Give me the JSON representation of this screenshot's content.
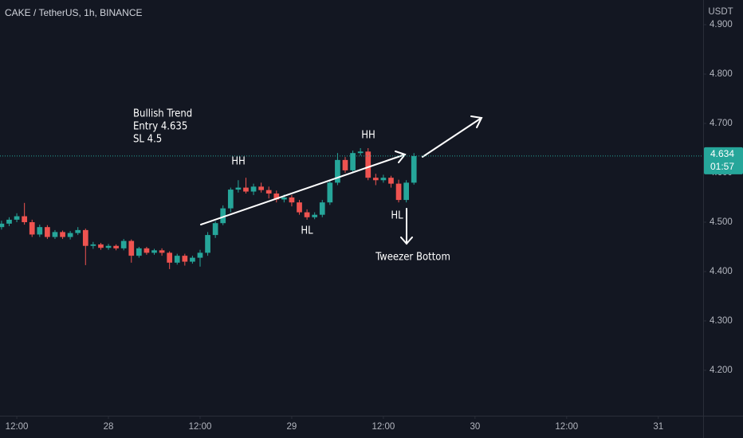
{
  "header": {
    "symbol": "CAKE / TetherUS, 1h, BINANCE",
    "currency": "USDT"
  },
  "chart_data": {
    "type": "candlestick",
    "up_color": "#26a69a",
    "down_color": "#ef5350",
    "x": [
      0,
      1,
      2,
      3,
      4,
      5,
      6,
      7,
      8,
      9,
      10,
      11,
      12,
      13,
      14,
      15,
      16,
      17,
      18,
      19,
      20,
      21,
      22,
      23,
      24,
      25,
      26,
      27,
      28,
      29,
      30,
      31,
      32,
      33,
      34,
      35,
      36,
      37,
      38,
      39,
      40,
      41,
      42,
      43,
      44,
      45,
      46,
      47,
      48,
      49,
      50,
      51,
      52,
      53,
      54
    ],
    "open": [
      4.49,
      4.497,
      4.505,
      4.512,
      4.5,
      4.475,
      4.49,
      4.47,
      4.48,
      4.47,
      4.478,
      4.484,
      4.452,
      4.455,
      4.448,
      4.452,
      4.447,
      4.462,
      4.432,
      4.447,
      4.438,
      4.443,
      4.438,
      4.418,
      4.432,
      4.42,
      4.428,
      4.438,
      4.474,
      4.498,
      4.528,
      4.566,
      4.57,
      4.562,
      4.572,
      4.565,
      4.558,
      4.546,
      4.55,
      4.54,
      4.52,
      4.51,
      4.515,
      4.54,
      4.58,
      4.626,
      4.605,
      4.64,
      4.643,
      4.59,
      4.585,
      4.59,
      4.578,
      4.545,
      4.58
    ],
    "high": [
      4.503,
      4.51,
      4.518,
      4.539,
      4.505,
      4.495,
      4.494,
      4.484,
      4.483,
      4.482,
      4.49,
      4.487,
      4.46,
      4.458,
      4.456,
      4.455,
      4.466,
      4.465,
      4.45,
      4.45,
      4.446,
      4.447,
      4.441,
      4.436,
      4.436,
      4.432,
      4.444,
      4.48,
      4.502,
      4.534,
      4.57,
      4.585,
      4.59,
      4.578,
      4.58,
      4.572,
      4.564,
      4.556,
      4.555,
      4.545,
      4.526,
      4.52,
      4.545,
      4.585,
      4.64,
      4.632,
      4.645,
      4.65,
      4.65,
      4.598,
      4.596,
      4.594,
      4.586,
      4.585,
      4.64
    ],
    "low": [
      4.485,
      4.492,
      4.5,
      4.495,
      4.47,
      4.47,
      4.466,
      4.466,
      4.466,
      4.465,
      4.474,
      4.413,
      4.446,
      4.444,
      4.444,
      4.443,
      4.443,
      4.418,
      4.428,
      4.434,
      4.434,
      4.432,
      4.405,
      4.414,
      4.412,
      4.416,
      4.41,
      4.432,
      4.468,
      4.494,
      4.52,
      4.56,
      4.558,
      4.555,
      4.56,
      4.548,
      4.54,
      4.54,
      4.532,
      4.515,
      4.505,
      4.506,
      4.51,
      4.535,
      4.575,
      4.6,
      4.6,
      4.635,
      4.585,
      4.575,
      4.58,
      4.57,
      4.54,
      4.54,
      4.576
    ],
    "close": [
      4.497,
      4.505,
      4.512,
      4.5,
      4.475,
      4.49,
      4.47,
      4.48,
      4.47,
      4.478,
      4.484,
      4.452,
      4.455,
      4.448,
      4.452,
      4.447,
      4.462,
      4.432,
      4.447,
      4.438,
      4.443,
      4.438,
      4.418,
      4.432,
      4.42,
      4.428,
      4.438,
      4.474,
      4.498,
      4.528,
      4.566,
      4.57,
      4.562,
      4.572,
      4.565,
      4.558,
      4.546,
      4.55,
      4.54,
      4.52,
      4.51,
      4.515,
      4.54,
      4.58,
      4.626,
      4.605,
      4.64,
      4.643,
      4.59,
      4.585,
      4.59,
      4.578,
      4.545,
      4.58,
      4.634
    ],
    "xlim": [
      -0.2,
      91.87
    ],
    "xticks": [
      {
        "value": 2,
        "label": "12:00"
      },
      {
        "value": 14,
        "label": "28"
      },
      {
        "value": 26,
        "label": "12:00"
      },
      {
        "value": 38,
        "label": "29"
      },
      {
        "value": 50,
        "label": "12:00"
      },
      {
        "value": 62,
        "label": "30"
      },
      {
        "value": 74,
        "label": "12:00"
      },
      {
        "value": 86,
        "label": "31"
      }
    ],
    "ylim": [
      4.108,
      4.95
    ],
    "yticks": [
      {
        "value": 4.2,
        "label": "4.200"
      },
      {
        "value": 4.3,
        "label": "4.300"
      },
      {
        "value": 4.4,
        "label": "4.400"
      },
      {
        "value": 4.5,
        "label": "4.500"
      },
      {
        "value": 4.6,
        "label": "4.600"
      },
      {
        "value": 4.7,
        "label": "4.700"
      },
      {
        "value": 4.8,
        "label": "4.800"
      },
      {
        "value": 4.9,
        "label": "4.900"
      }
    ],
    "last_price": 4.634,
    "countdown": "01:57",
    "annotations": {
      "trend": "Bullish Trend",
      "entry": "Entry 4.635",
      "sl": "SL 4.5",
      "hh1": "HH",
      "hh2": "HH",
      "hl1": "HL",
      "hl2": "HL",
      "tweezer": "Tweezer Bottom"
    }
  }
}
